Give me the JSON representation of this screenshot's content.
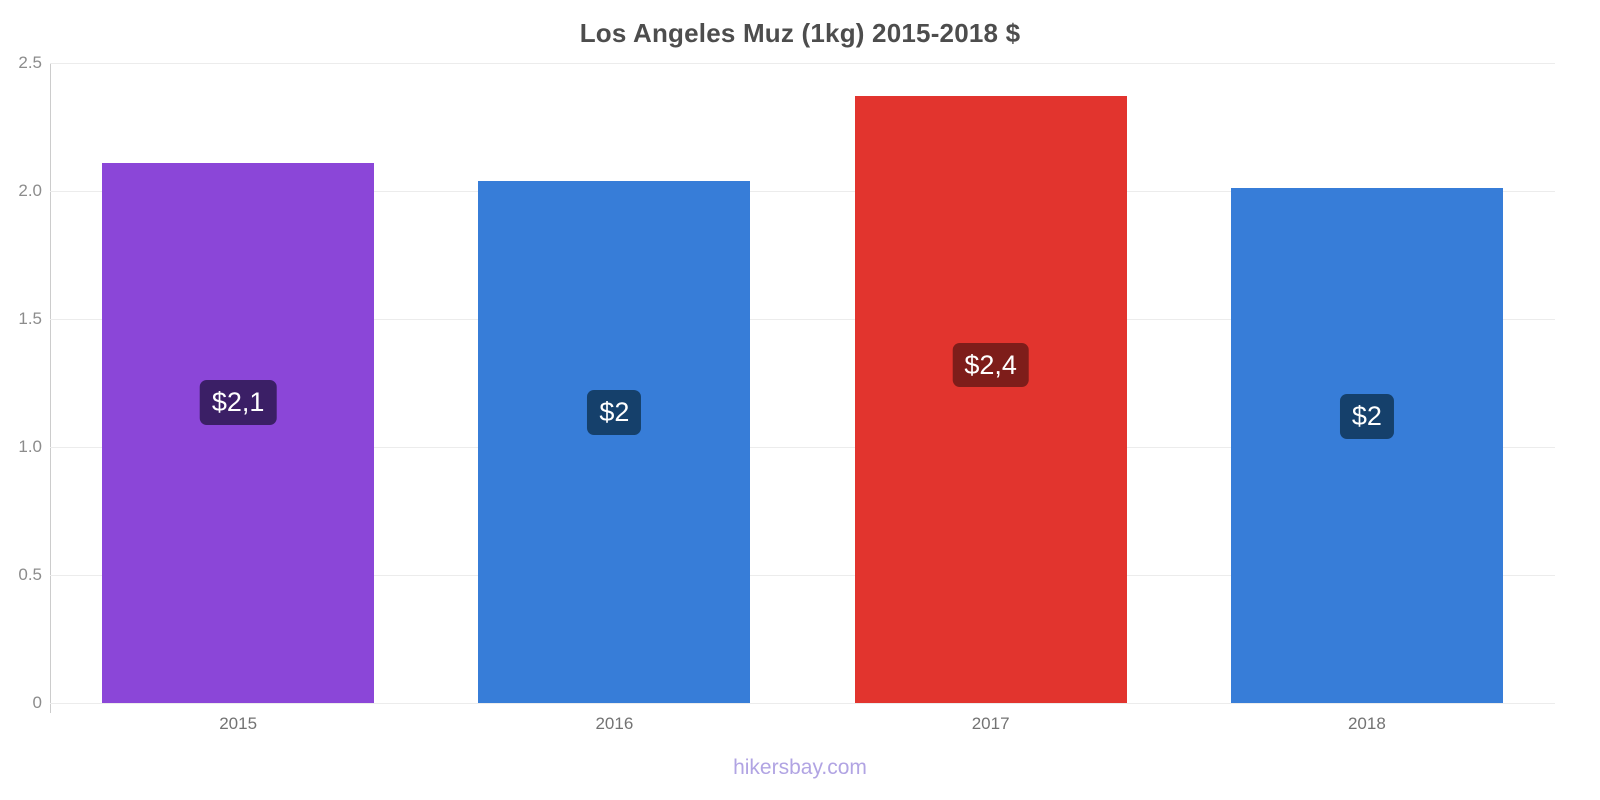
{
  "title": "Los Angeles Muz (1kg) 2015-2018 $",
  "footer": "hikersbay.com",
  "chart_data": {
    "type": "bar",
    "title": "Los Angeles Muz (1kg) 2015-2018 $",
    "xlabel": "",
    "ylabel": "",
    "categories": [
      "2015",
      "2016",
      "2017",
      "2018"
    ],
    "values": [
      2.11,
      2.04,
      2.37,
      2.01
    ],
    "value_labels": [
      "$2,1",
      "$2",
      "$2,4",
      "$2"
    ],
    "bar_colors": [
      "#8b46d8",
      "#377dd8",
      "#e2342e",
      "#377dd8"
    ],
    "badge_colors": [
      "#3b1f66",
      "#15406b",
      "#7e1d1a",
      "#15406b"
    ],
    "ylim": [
      0,
      2.5
    ],
    "yticks": [
      0,
      0.5,
      1.0,
      1.5,
      2.0,
      2.5
    ],
    "ytick_labels": [
      "0",
      "0.5",
      "1.0",
      "1.5",
      "2.0",
      "2.5"
    ],
    "grid": true,
    "legend": false
  },
  "colors": {
    "title_text": "#4d4d4d",
    "axis_line": "#cccccc",
    "gridline": "#ececec",
    "ytick_text": "#8c8c8c",
    "xtick_text": "#737373",
    "footer_text": "#b1a4e3"
  }
}
